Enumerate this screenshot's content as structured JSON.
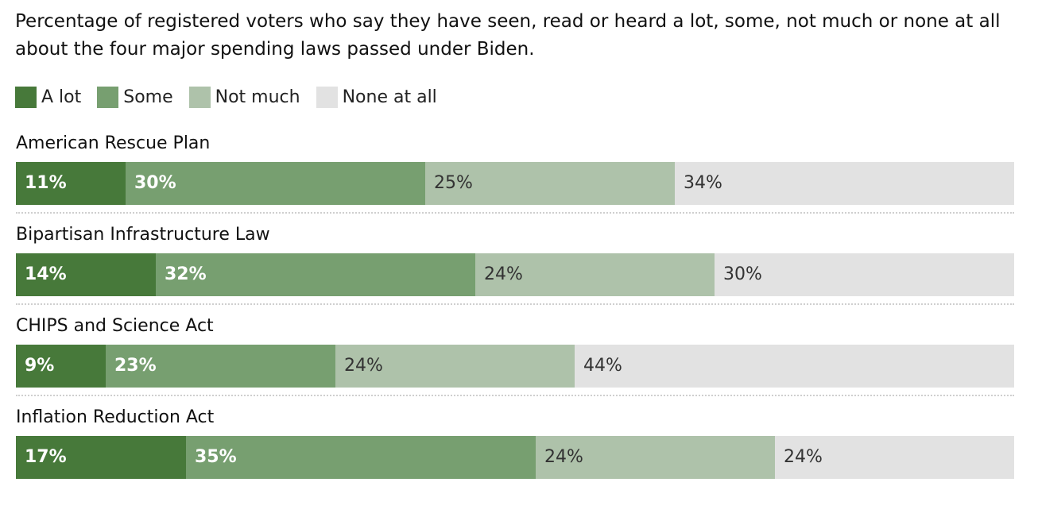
{
  "title": "Percentage of registered voters who say they have seen, read or heard a lot, some, not much or none at all about the four major spending laws passed under Biden.",
  "colors": {
    "a_lot": "#47793a",
    "some": "#779f70",
    "not_much": "#aec2aa",
    "none_at_all": "#e2e2e2",
    "label_dark_bg": "#ffffff",
    "label_light_bg": "#333333"
  },
  "chart_data": {
    "type": "bar",
    "orientation": "horizontal",
    "stacked": true,
    "unit": "%",
    "categories": [
      "American Rescue Plan",
      "Bipartisan Infrastructure Law",
      "CHIPS and Science Act",
      "Inflation Reduction Act"
    ],
    "series": [
      {
        "name": "A lot",
        "values": [
          11,
          14,
          9,
          17
        ]
      },
      {
        "name": "Some",
        "values": [
          30,
          32,
          23,
          35
        ]
      },
      {
        "name": "Not much",
        "values": [
          25,
          24,
          24,
          24
        ]
      },
      {
        "name": "None at all",
        "values": [
          34,
          30,
          44,
          24
        ]
      }
    ],
    "xlim": [
      0,
      100
    ],
    "legend_position": "top-left",
    "grid": false
  }
}
